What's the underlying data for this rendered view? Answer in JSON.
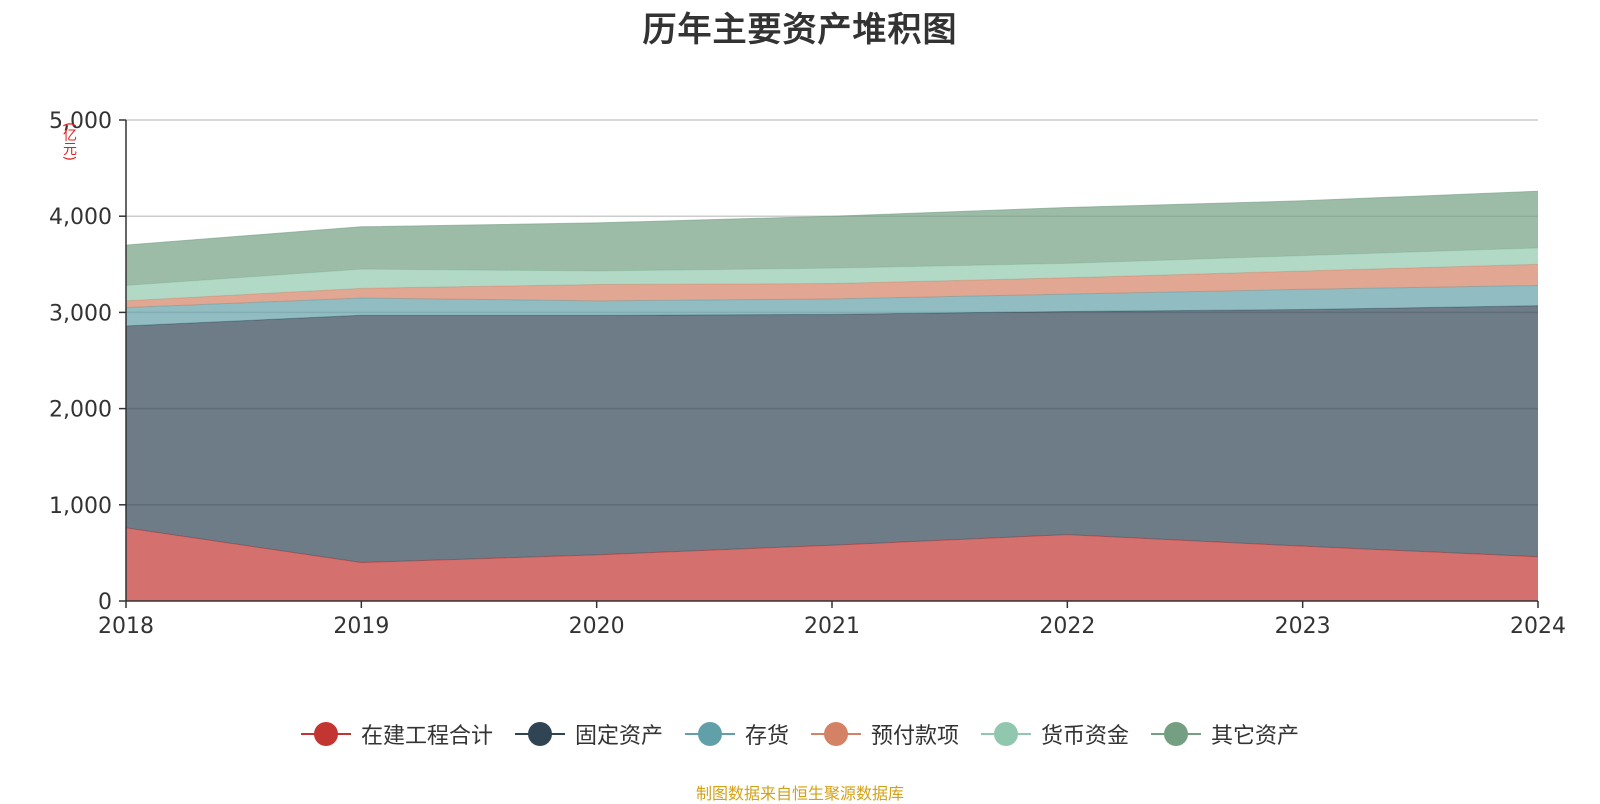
{
  "chart_data": {
    "type": "area",
    "stacked": true,
    "title": "历年主要资产堆积图",
    "unit": "(亿元)",
    "x": [
      "2018",
      "2019",
      "2020",
      "2021",
      "2022",
      "2023",
      "2024"
    ],
    "y_ticks": [
      "0",
      "1,000",
      "2,000",
      "3,000",
      "4,000",
      "5,000"
    ],
    "ylim": [
      0,
      5000
    ],
    "grid": true,
    "legend_position": "bottom",
    "series": [
      {
        "name": "在建工程合计",
        "color": "#c23531",
        "values": [
          760,
          400,
          480,
          580,
          690,
          570,
          460
        ]
      },
      {
        "name": "固定资产",
        "color": "#2f4554",
        "values": [
          2100,
          2570,
          2490,
          2400,
          2320,
          2460,
          2610
        ]
      },
      {
        "name": "存货",
        "color": "#61a0a8",
        "values": [
          190,
          180,
          150,
          160,
          180,
          210,
          210
        ]
      },
      {
        "name": "预付款项",
        "color": "#d48265",
        "values": [
          70,
          100,
          170,
          160,
          170,
          190,
          220
        ]
      },
      {
        "name": "货币资金",
        "color": "#91c7ae",
        "values": [
          160,
          200,
          140,
          160,
          150,
          160,
          170
        ]
      },
      {
        "name": "其它资产",
        "color": "#749f83",
        "values": [
          420,
          440,
          500,
          540,
          580,
          570,
          590
        ]
      }
    ]
  },
  "source": "制图数据来自恒生聚源数据库"
}
